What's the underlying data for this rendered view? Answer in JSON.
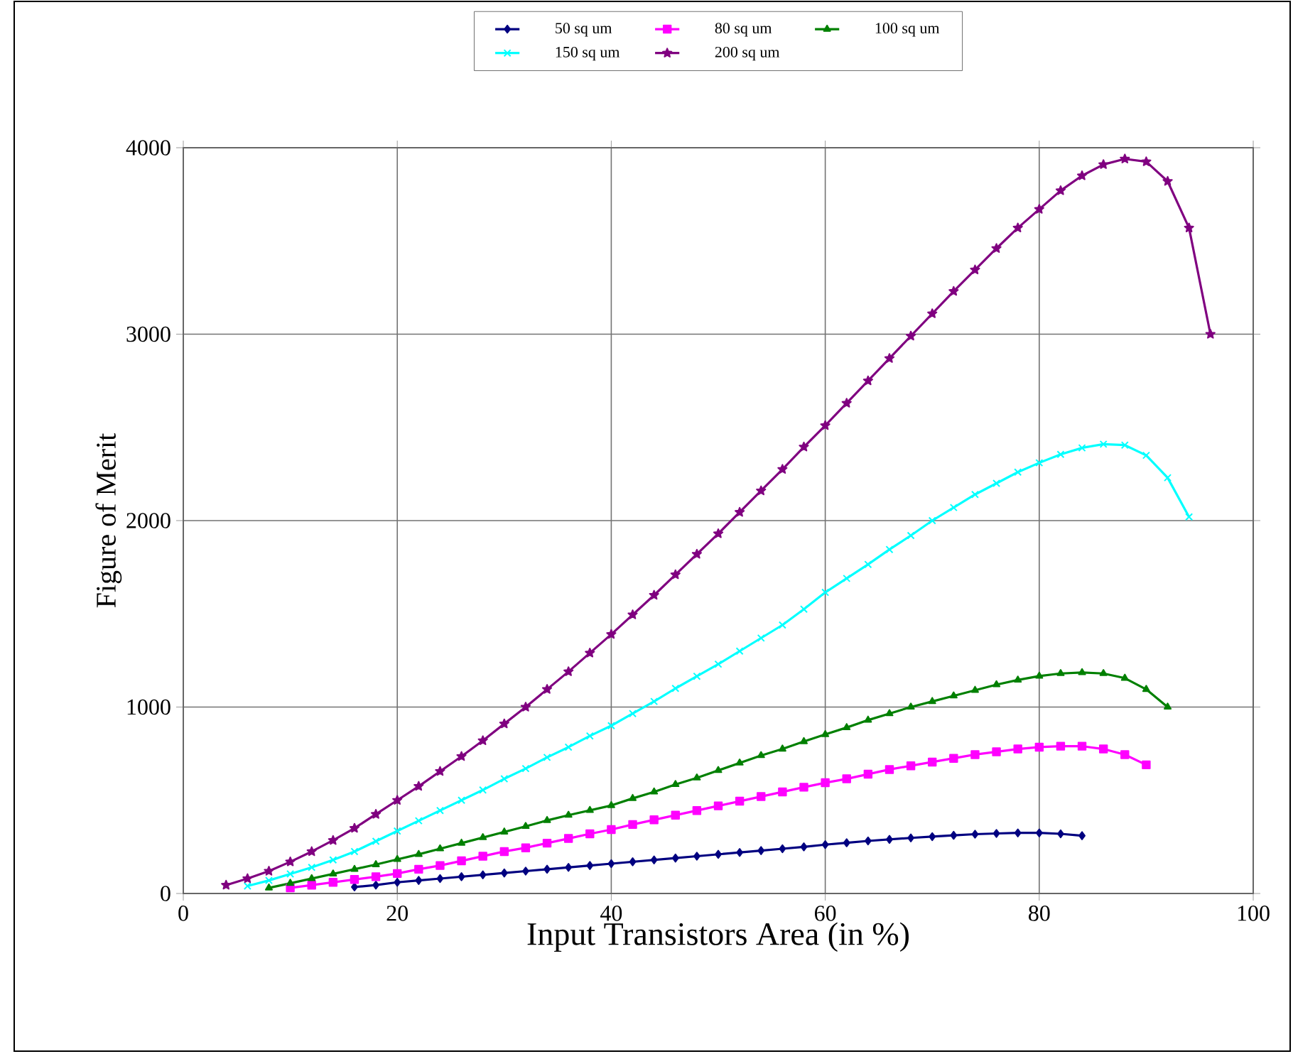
{
  "chart_data": {
    "type": "line",
    "xlabel": "Input Transistors Area (in %)",
    "ylabel": "Figure of Merit",
    "xlim": [
      0,
      100
    ],
    "xticks": [
      0,
      20,
      40,
      60,
      80,
      100
    ],
    "ylim": [
      0,
      4000
    ],
    "yticks": [
      0,
      1000,
      2000,
      3000,
      4000
    ],
    "grid": true,
    "legend": "top",
    "series": [
      {
        "name": "50 sq um",
        "color": "#000080",
        "marker": "diamond",
        "x": [
          16,
          18,
          20,
          22,
          24,
          26,
          28,
          30,
          32,
          34,
          36,
          38,
          40,
          42,
          44,
          46,
          48,
          50,
          52,
          54,
          56,
          58,
          60,
          62,
          64,
          66,
          68,
          70,
          72,
          74,
          76,
          78,
          80,
          82,
          84
        ],
        "values": [
          35,
          45,
          60,
          70,
          80,
          90,
          100,
          110,
          120,
          130,
          140,
          150,
          160,
          170,
          180,
          190,
          200,
          210,
          220,
          230,
          240,
          250,
          262,
          272,
          282,
          290,
          298,
          305,
          312,
          318,
          322,
          325,
          325,
          320,
          310
        ]
      },
      {
        "name": "80 sq um",
        "color": "#ff00ff",
        "marker": "square",
        "x": [
          10,
          12,
          14,
          16,
          18,
          20,
          22,
          24,
          26,
          28,
          30,
          32,
          34,
          36,
          38,
          40,
          42,
          44,
          46,
          48,
          50,
          52,
          54,
          56,
          58,
          60,
          62,
          64,
          66,
          68,
          70,
          72,
          74,
          76,
          78,
          80,
          82,
          84,
          86,
          88,
          90
        ],
        "values": [
          30,
          45,
          60,
          75,
          90,
          107,
          130,
          150,
          175,
          200,
          225,
          245,
          270,
          295,
          320,
          343,
          370,
          395,
          420,
          445,
          470,
          495,
          520,
          545,
          570,
          594,
          615,
          640,
          665,
          685,
          705,
          725,
          745,
          760,
          775,
          785,
          790,
          790,
          775,
          745,
          690
        ]
      },
      {
        "name": "100 sq um",
        "color": "#008000",
        "marker": "triangle",
        "x": [
          8,
          10,
          12,
          14,
          16,
          18,
          20,
          22,
          24,
          26,
          28,
          30,
          32,
          34,
          36,
          38,
          40,
          42,
          44,
          46,
          48,
          50,
          52,
          54,
          56,
          58,
          60,
          62,
          64,
          66,
          68,
          70,
          72,
          74,
          76,
          78,
          80,
          82,
          84,
          86,
          88,
          90,
          92
        ],
        "values": [
          30,
          55,
          80,
          105,
          130,
          155,
          183,
          210,
          240,
          270,
          300,
          330,
          360,
          392,
          420,
          446,
          472,
          510,
          545,
          585,
          620,
          660,
          700,
          740,
          775,
          815,
          853,
          890,
          930,
          965,
          1000,
          1030,
          1060,
          1090,
          1120,
          1145,
          1166,
          1180,
          1185,
          1180,
          1155,
          1095,
          1000
        ]
      },
      {
        "name": "150 sq um",
        "color": "#00ffff",
        "marker": "cross",
        "x": [
          6,
          8,
          10,
          12,
          14,
          16,
          18,
          20,
          22,
          24,
          26,
          28,
          30,
          32,
          34,
          36,
          38,
          40,
          42,
          44,
          46,
          48,
          50,
          52,
          54,
          56,
          58,
          60,
          62,
          64,
          66,
          68,
          70,
          72,
          74,
          76,
          78,
          80,
          82,
          84,
          86,
          88,
          90,
          92,
          94
        ],
        "values": [
          40,
          70,
          105,
          140,
          180,
          225,
          280,
          335,
          390,
          445,
          500,
          555,
          615,
          670,
          730,
          785,
          845,
          900,
          965,
          1030,
          1100,
          1165,
          1230,
          1300,
          1370,
          1440,
          1525,
          1615,
          1690,
          1765,
          1845,
          1920,
          2000,
          2070,
          2140,
          2200,
          2260,
          2310,
          2355,
          2390,
          2410,
          2405,
          2350,
          2230,
          2020
        ]
      },
      {
        "name": "200 sq um",
        "color": "#800080",
        "marker": "star",
        "x": [
          4,
          6,
          8,
          10,
          12,
          14,
          16,
          18,
          20,
          22,
          24,
          26,
          28,
          30,
          32,
          34,
          36,
          38,
          40,
          42,
          44,
          46,
          48,
          50,
          52,
          54,
          56,
          58,
          60,
          62,
          64,
          66,
          68,
          70,
          72,
          74,
          76,
          78,
          80,
          82,
          84,
          86,
          88,
          90,
          92,
          94,
          96
        ],
        "values": [
          45,
          80,
          120,
          170,
          225,
          285,
          350,
          425,
          500,
          575,
          655,
          735,
          820,
          910,
          1000,
          1095,
          1190,
          1290,
          1390,
          1495,
          1600,
          1710,
          1820,
          1930,
          2045,
          2160,
          2275,
          2395,
          2510,
          2630,
          2750,
          2870,
          2990,
          3110,
          3230,
          3345,
          3460,
          3570,
          3670,
          3770,
          3850,
          3910,
          3940,
          3925,
          3820,
          3570,
          3000
        ]
      }
    ]
  }
}
